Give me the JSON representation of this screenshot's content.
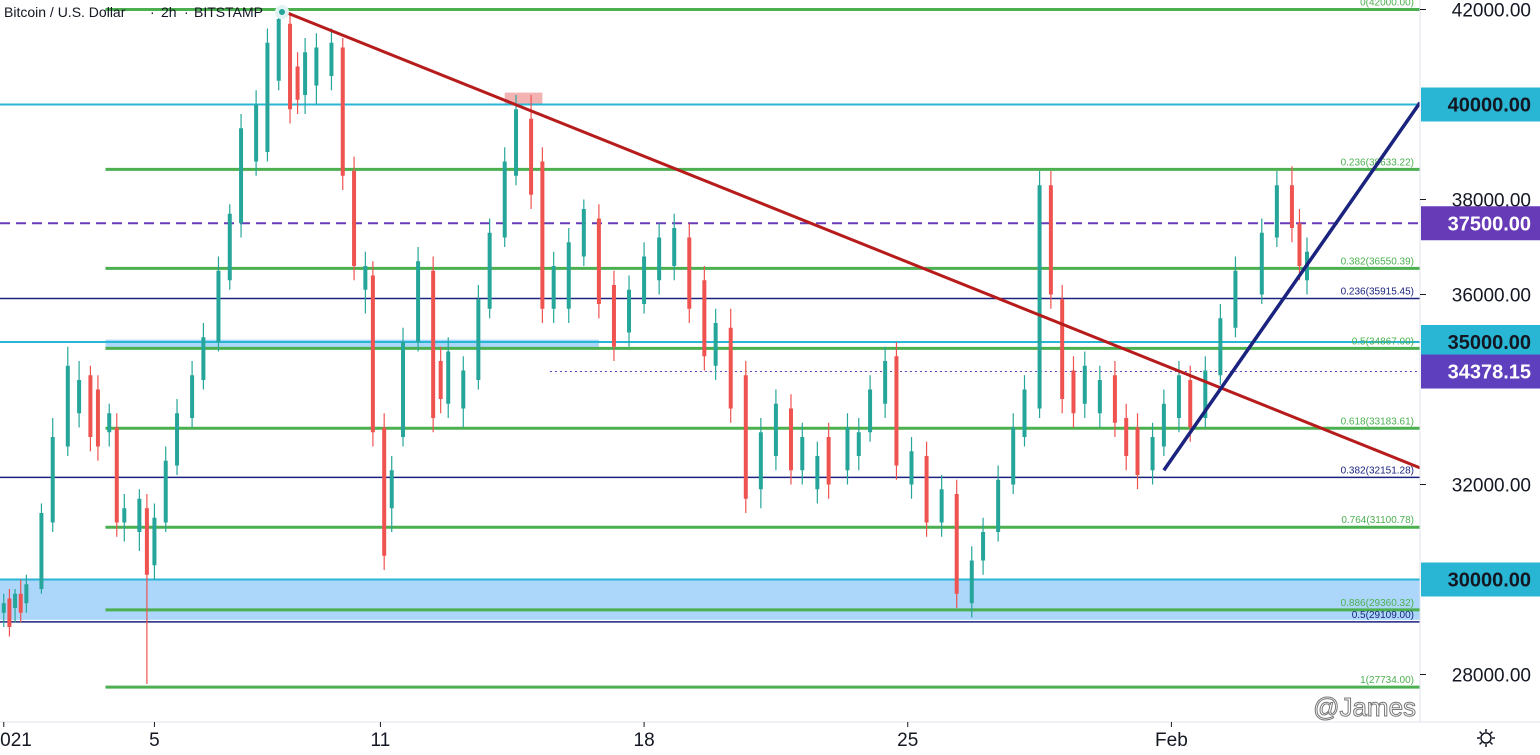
{
  "header": {
    "symbol": "Bitcoin / U.S. Dollar",
    "interval": "2h",
    "exchange": "BITSTAMP",
    "status_dot_color": "#26a69a"
  },
  "watermark": "@James Stanley",
  "chart_data": {
    "type": "candlestick",
    "ylim": [
      27000,
      42200
    ],
    "grid": false,
    "y_ticks": [
      "42000.00",
      "38000.00",
      "36000.00",
      "32000.00",
      "28000.00"
    ],
    "x_ticks": [
      {
        "label": "021",
        "pos": 0.0
      },
      {
        "label": "5",
        "pos": 4.0
      },
      {
        "label": "11",
        "pos": 10.0
      },
      {
        "label": "18",
        "pos": 17.0
      },
      {
        "label": "25",
        "pos": 24.0
      },
      {
        "label": "Feb",
        "pos": 31.0
      }
    ],
    "x_range": [
      -0.1,
      37.6
    ],
    "price_labels": [
      {
        "value": 40000,
        "text": "40000.00",
        "color": "#29b6d4",
        "text_color": "#131722"
      },
      {
        "value": 37500,
        "text": "37500.00",
        "color": "#673ab7",
        "text_color": "#ffffff"
      },
      {
        "value": 35000,
        "text": "35000.00",
        "color": "#29b6d4",
        "text_color": "#131722"
      },
      {
        "value": 34378.15,
        "text": "34378.15",
        "color": "#5e3fbe",
        "text_color": "#ffffff"
      },
      {
        "value": 30000,
        "text": "30000.00",
        "color": "#29b6d4",
        "text_color": "#131722"
      }
    ],
    "fib_levels": [
      {
        "label": "0(42000.00)",
        "value": 42000,
        "color": "#4caf50",
        "from": 2.7
      },
      {
        "label": "0.236(38633.22)",
        "value": 38633.22,
        "color": "#4caf50",
        "from": 2.7
      },
      {
        "label": "0.382(36550.39)",
        "value": 36550.39,
        "color": "#4caf50",
        "from": 2.7
      },
      {
        "label": "0.5(34867.00)",
        "value": 34867,
        "color": "#4caf50",
        "from": 2.7
      },
      {
        "label": "0.618(33183.61)",
        "value": 33183.61,
        "color": "#4caf50",
        "from": 2.7
      },
      {
        "label": "0.764(31100.78)",
        "value": 31100.78,
        "color": "#4caf50",
        "from": 2.7
      },
      {
        "label": "0.886(29360.32)",
        "value": 29360.32,
        "color": "#4caf50",
        "from": 2.7
      },
      {
        "label": "1(27734.00)",
        "value": 27734,
        "color": "#4caf50",
        "from": 2.7
      },
      {
        "label": "0.236(35915.45)",
        "value": 35915.45,
        "color": "#1a237e",
        "from": -0.1
      },
      {
        "label": "0.382(32151.28)",
        "value": 32151.28,
        "color": "#1a237e",
        "from": -0.1
      },
      {
        "label": "0.5(29109.00)",
        "value": 29109,
        "color": "#1a237e",
        "from": -0.1
      }
    ],
    "horizontal_lines": [
      {
        "value": 40000,
        "color": "#29b6d4",
        "style": "solid"
      },
      {
        "value": 35000,
        "color": "#29b6d4",
        "style": "solid"
      },
      {
        "value": 30000,
        "color": "#29b6d4",
        "style": "solid"
      },
      {
        "value": 37500,
        "color": "#673ab7",
        "style": "dashed"
      },
      {
        "value": 34378.15,
        "color": "#5e3fbe",
        "style": "dotted",
        "from": 14.5
      }
    ],
    "zones": [
      {
        "y1": 29150,
        "y2": 30000,
        "x1": -0.1,
        "x2": 37.6,
        "color": "#90caf9"
      },
      {
        "y1": 34850,
        "y2": 35050,
        "x1": 2.7,
        "x2": 15.8,
        "color": "#90caf9"
      },
      {
        "y1": 40000,
        "y2": 40250,
        "x1": 13.3,
        "x2": 14.3,
        "color": "#ef9a9a"
      }
    ],
    "trendlines": [
      {
        "name": "",
        "x1": 7.3,
        "y1": 42000,
        "x2": 37.6,
        "y2": 32350,
        "color": "#b71c1c"
      },
      {
        "name": "",
        "x1": 30.8,
        "y1": 32300,
        "x2": 37.6,
        "y2": 40040,
        "color": "#1a237e"
      }
    ],
    "colors": {
      "up": "#26a69a",
      "down": "#ef5350"
    },
    "candles_bull": [
      [
        0.0,
        29300,
        29700,
        29000,
        29500
      ],
      [
        0.3,
        29400,
        29800,
        29100,
        29700
      ],
      [
        0.6,
        29500,
        30100,
        29300,
        29900
      ],
      [
        1.0,
        29800,
        31600,
        29700,
        31400
      ],
      [
        1.3,
        31200,
        33400,
        31000,
        33000
      ],
      [
        1.7,
        32800,
        34900,
        32600,
        34500
      ],
      [
        2.0,
        33500,
        34600,
        33200,
        34200
      ],
      [
        2.8,
        33100,
        33700,
        32800,
        33500
      ],
      [
        3.2,
        31200,
        31800,
        30800,
        31500
      ],
      [
        3.6,
        31000,
        31900,
        30600,
        31700
      ],
      [
        4.0,
        30300,
        31600,
        30000,
        31300
      ],
      [
        4.3,
        31200,
        32800,
        31000,
        32500
      ],
      [
        4.6,
        32400,
        33800,
        32200,
        33500
      ],
      [
        5.0,
        33400,
        34600,
        33200,
        34300
      ],
      [
        5.3,
        34200,
        35400,
        34000,
        35100
      ],
      [
        5.7,
        35000,
        36800,
        34800,
        36500
      ],
      [
        6.0,
        36300,
        37900,
        36100,
        37700
      ],
      [
        6.3,
        37500,
        39800,
        37200,
        39500
      ],
      [
        6.7,
        38800,
        40300,
        38500,
        40000
      ],
      [
        7.0,
        39000,
        41600,
        38800,
        41300
      ],
      [
        7.3,
        40500,
        42000,
        40300,
        41800
      ],
      [
        8.0,
        40200,
        41400,
        39800,
        41100
      ],
      [
        8.3,
        40400,
        41500,
        40000,
        41200
      ],
      [
        8.7,
        40600,
        41600,
        40300,
        41300
      ],
      [
        9.6,
        36100,
        36900,
        35600,
        36600
      ],
      [
        10.3,
        31500,
        32600,
        31000,
        32300
      ],
      [
        10.6,
        33000,
        35300,
        32800,
        35000
      ],
      [
        11.0,
        35000,
        37000,
        34800,
        36700
      ],
      [
        11.8,
        33700,
        35100,
        33400,
        34800
      ],
      [
        12.2,
        33600,
        34700,
        33200,
        34400
      ],
      [
        12.6,
        34200,
        36200,
        34000,
        35900
      ],
      [
        12.9,
        35700,
        37600,
        35500,
        37300
      ],
      [
        13.3,
        37200,
        39100,
        37000,
        38800
      ],
      [
        13.6,
        38500,
        40200,
        38300,
        39900
      ],
      [
        14.6,
        35700,
        36900,
        35400,
        36600
      ],
      [
        15.0,
        35700,
        37400,
        35400,
        37100
      ],
      [
        15.4,
        36800,
        38000,
        36600,
        37800
      ],
      [
        16.6,
        35200,
        36400,
        34900,
        36100
      ],
      [
        17.0,
        35800,
        37100,
        35600,
        36800
      ],
      [
        17.4,
        36300,
        37500,
        36000,
        37200
      ],
      [
        17.8,
        36600,
        37700,
        36300,
        37400
      ],
      [
        18.9,
        34500,
        35700,
        34200,
        35400
      ],
      [
        20.1,
        31900,
        33400,
        31500,
        33100
      ],
      [
        20.5,
        32600,
        34000,
        32300,
        33700
      ],
      [
        21.2,
        32300,
        33300,
        32000,
        33000
      ],
      [
        21.6,
        31900,
        32900,
        31600,
        32600
      ],
      [
        22.4,
        32300,
        33500,
        32000,
        33200
      ],
      [
        22.7,
        32600,
        33400,
        32300,
        33100
      ],
      [
        23.0,
        33100,
        34300,
        32900,
        34000
      ],
      [
        23.4,
        33700,
        34900,
        33400,
        34600
      ],
      [
        24.1,
        32000,
        33000,
        31700,
        32700
      ],
      [
        24.9,
        31200,
        32200,
        30900,
        31900
      ],
      [
        25.7,
        29500,
        30700,
        29200,
        30400
      ],
      [
        26.0,
        30400,
        31300,
        30100,
        31000
      ],
      [
        26.4,
        31000,
        32400,
        30800,
        32100
      ],
      [
        26.8,
        32000,
        33500,
        31800,
        33200
      ],
      [
        27.1,
        33000,
        34300,
        32800,
        34000
      ],
      [
        27.5,
        33600,
        38600,
        33400,
        38300
      ],
      [
        28.7,
        33700,
        34800,
        33400,
        34500
      ],
      [
        29.1,
        33500,
        34500,
        33200,
        34200
      ],
      [
        30.5,
        32300,
        33300,
        32000,
        33000
      ],
      [
        30.8,
        32800,
        34000,
        32600,
        33700
      ],
      [
        31.2,
        33400,
        34600,
        33100,
        34300
      ],
      [
        31.9,
        33400,
        34700,
        33200,
        34400
      ],
      [
        32.3,
        34300,
        35800,
        34100,
        35500
      ],
      [
        32.7,
        35300,
        36800,
        35100,
        36500
      ],
      [
        33.4,
        36000,
        37600,
        35800,
        37300
      ],
      [
        33.8,
        37200,
        38600,
        37000,
        38300
      ],
      [
        34.6,
        36300,
        37200,
        36000,
        36900
      ]
    ],
    "candles_bear": [
      [
        0.15,
        29600,
        29800,
        28800,
        29000
      ],
      [
        0.45,
        29700,
        30000,
        29100,
        29300
      ],
      [
        2.3,
        34300,
        34500,
        32700,
        33000
      ],
      [
        2.5,
        34000,
        34300,
        32500,
        32800
      ],
      [
        3.0,
        33200,
        33500,
        30900,
        31200
      ],
      [
        3.8,
        31500,
        31800,
        27800,
        30100
      ],
      [
        7.6,
        41700,
        41900,
        39600,
        39900
      ],
      [
        7.8,
        40800,
        41100,
        39800,
        40100
      ],
      [
        9.0,
        41200,
        41400,
        38200,
        38500
      ],
      [
        9.3,
        38600,
        38900,
        36300,
        36600
      ],
      [
        9.8,
        36400,
        36700,
        32800,
        33100
      ],
      [
        10.1,
        33200,
        33500,
        30200,
        30500
      ],
      [
        11.4,
        36500,
        36800,
        33100,
        33400
      ],
      [
        11.6,
        34600,
        34900,
        33500,
        33800
      ],
      [
        14.0,
        39700,
        40200,
        37800,
        38100
      ],
      [
        14.3,
        38800,
        39100,
        35400,
        35700
      ],
      [
        15.8,
        37600,
        37900,
        35500,
        35800
      ],
      [
        16.2,
        36200,
        36500,
        34600,
        34900
      ],
      [
        18.2,
        37200,
        37500,
        35400,
        35700
      ],
      [
        18.6,
        36300,
        36600,
        34400,
        34700
      ],
      [
        19.3,
        35300,
        35700,
        33300,
        33600
      ],
      [
        19.7,
        34300,
        34600,
        31400,
        31700
      ],
      [
        20.9,
        33600,
        33900,
        32000,
        32300
      ],
      [
        21.9,
        33000,
        33300,
        31700,
        32000
      ],
      [
        23.7,
        34700,
        35000,
        32100,
        32400
      ],
      [
        24.5,
        32600,
        32900,
        30900,
        31200
      ],
      [
        25.3,
        31800,
        32100,
        29400,
        29700
      ],
      [
        27.8,
        38300,
        38600,
        35700,
        36000
      ],
      [
        28.1,
        35900,
        36200,
        33500,
        33800
      ],
      [
        28.4,
        34400,
        34700,
        33200,
        33500
      ],
      [
        29.5,
        34300,
        34600,
        33000,
        33300
      ],
      [
        29.8,
        33400,
        33700,
        32300,
        32600
      ],
      [
        30.1,
        33200,
        33500,
        31900,
        32200
      ],
      [
        31.5,
        34200,
        34500,
        32900,
        33200
      ],
      [
        34.2,
        38300,
        38700,
        37100,
        37400
      ],
      [
        34.4,
        37500,
        37800,
        36300,
        36600
      ]
    ]
  }
}
